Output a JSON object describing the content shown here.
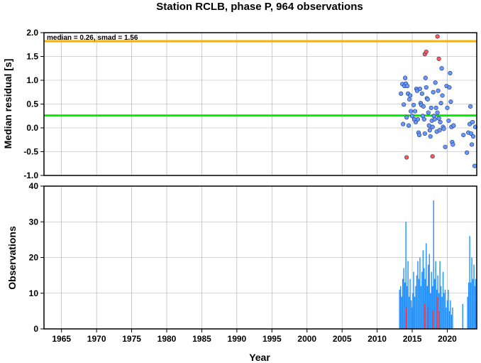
{
  "chart_data": [
    {
      "type": "scatter",
      "title": "Station RCLB, phase P, 964 observations",
      "ylabel": "Median residual [s]",
      "annotation": "median = 0.26, smad = 1.56",
      "xlim": [
        1962.5,
        2024.2
      ],
      "ylim": [
        -1.0,
        2.0
      ],
      "yticks": [
        "2.0",
        "1.5",
        "1.0",
        "0.5",
        "0.0",
        "-0.5",
        "-1.0"
      ],
      "grid": true,
      "reference_lines": [
        {
          "value": 0.26,
          "color": "#00ee00"
        },
        {
          "value": 1.82,
          "color": "#ffb000"
        }
      ],
      "colors": {
        "normal": "#6699ff",
        "outlier": "#ff5555"
      },
      "series": [
        {
          "points": [
            [
              2013.4,
              0.72
            ],
            [
              2013.6,
              0.92
            ],
            [
              2013.7,
              0.08
            ],
            [
              2013.8,
              0.49
            ],
            [
              2013.9,
              0.88
            ],
            [
              2014.0,
              1.05
            ],
            [
              2014.1,
              0.93
            ],
            [
              2014.2,
              0.22
            ],
            [
              2014.3,
              0.88
            ],
            [
              2014.4,
              0.72
            ],
            [
              2014.5,
              0.05
            ],
            [
              2014.6,
              0.6
            ],
            [
              2014.7,
              0.68
            ],
            [
              2014.8,
              0.35
            ],
            [
              2015.0,
              0.25
            ],
            [
              2015.2,
              0.48
            ],
            [
              2015.3,
              0.18
            ],
            [
              2015.4,
              0.35
            ],
            [
              2015.5,
              0.12
            ],
            [
              2015.6,
              0.82
            ],
            [
              2015.7,
              0.78
            ],
            [
              2015.8,
              0.18
            ],
            [
              2015.9,
              -0.1
            ],
            [
              2016.0,
              -0.15
            ],
            [
              2016.1,
              0.82
            ],
            [
              2016.2,
              0.52
            ],
            [
              2016.3,
              0.48
            ],
            [
              2016.4,
              0.72
            ],
            [
              2016.5,
              0.25
            ],
            [
              2016.6,
              0.45
            ],
            [
              2016.7,
              0.18
            ],
            [
              2016.8,
              -0.12
            ],
            [
              2016.9,
              1.05
            ],
            [
              2017.0,
              0.85
            ],
            [
              2017.1,
              0.62
            ],
            [
              2017.2,
              0.6
            ],
            [
              2017.3,
              0.32
            ],
            [
              2017.4,
              0.05
            ],
            [
              2017.5,
              -0.05
            ],
            [
              2017.6,
              -0.18
            ],
            [
              2017.7,
              0.42
            ],
            [
              2017.8,
              0.15
            ],
            [
              2017.9,
              0.02
            ],
            [
              2018.0,
              0.75
            ],
            [
              2018.1,
              0.25
            ],
            [
              2018.2,
              0.18
            ],
            [
              2018.3,
              0.95
            ],
            [
              2018.4,
              0.42
            ],
            [
              2018.5,
              -0.08
            ],
            [
              2018.6,
              0.32
            ],
            [
              2018.7,
              0.78
            ],
            [
              2018.8,
              0.2
            ],
            [
              2018.9,
              -0.05
            ],
            [
              2019.0,
              0.12
            ],
            [
              2019.1,
              0.52
            ],
            [
              2019.2,
              1.25
            ],
            [
              2019.3,
              0.68
            ],
            [
              2019.4,
              0.02
            ],
            [
              2019.5,
              -0.02
            ],
            [
              2019.7,
              -0.4
            ],
            [
              2019.9,
              0.88
            ],
            [
              2020.0,
              0.42
            ],
            [
              2020.2,
              0.15
            ],
            [
              2020.3,
              0.85
            ],
            [
              2020.4,
              1.15
            ],
            [
              2020.5,
              0.55
            ],
            [
              2020.6,
              0.02
            ],
            [
              2020.7,
              -0.3
            ],
            [
              2020.8,
              -0.35
            ],
            [
              2020.9,
              0.05
            ],
            [
              2022.3,
              -0.15
            ],
            [
              2022.8,
              -0.52
            ],
            [
              2023.0,
              -0.1
            ],
            [
              2023.2,
              0.08
            ],
            [
              2023.3,
              0.45
            ],
            [
              2023.4,
              -0.12
            ],
            [
              2023.5,
              -0.35
            ],
            [
              2023.6,
              0.12
            ],
            [
              2023.7,
              -0.18
            ],
            [
              2023.9,
              -0.8
            ],
            [
              2024.0,
              0.02
            ]
          ]
        },
        {
          "outlier": true,
          "points": [
            [
              2014.2,
              -0.62
            ],
            [
              2016.8,
              1.55
            ],
            [
              2017.0,
              1.6
            ],
            [
              2017.9,
              -0.6
            ],
            [
              2018.6,
              1.92
            ],
            [
              2018.8,
              1.45
            ]
          ]
        }
      ]
    },
    {
      "type": "bar",
      "xlabel": "Year",
      "ylabel": "Observations",
      "xlim": [
        1962.5,
        2024.2
      ],
      "ylim": [
        0,
        40
      ],
      "xticks": [
        "1965",
        "1970",
        "1975",
        "1980",
        "1985",
        "1990",
        "1995",
        "2000",
        "2005",
        "2010",
        "2015",
        "2020"
      ],
      "yticks": [
        "40",
        "30",
        "20",
        "10",
        "0"
      ],
      "grid": true,
      "colors": {
        "normal": "#1e8fff",
        "outlier": "#ff3333"
      },
      "bar_series": [
        {
          "points": [
            [
              2013.2,
              11
            ],
            [
              2013.35,
              12
            ],
            [
              2013.5,
              9
            ],
            [
              2013.65,
              14
            ],
            [
              2013.8,
              17
            ],
            [
              2013.95,
              13
            ],
            [
              2014.1,
              30
            ],
            [
              2014.25,
              12
            ],
            [
              2014.4,
              19
            ],
            [
              2014.55,
              9
            ],
            [
              2014.7,
              14
            ],
            [
              2014.85,
              8
            ],
            [
              2015.0,
              6
            ],
            [
              2015.1,
              10
            ],
            [
              2015.2,
              16
            ],
            [
              2015.35,
              9
            ],
            [
              2015.5,
              12
            ],
            [
              2015.65,
              15
            ],
            [
              2015.8,
              19
            ],
            [
              2015.95,
              14
            ],
            [
              2016.1,
              20
            ],
            [
              2016.25,
              12
            ],
            [
              2016.4,
              16
            ],
            [
              2016.55,
              22
            ],
            [
              2016.7,
              17
            ],
            [
              2016.85,
              14
            ],
            [
              2017.0,
              24
            ],
            [
              2017.15,
              12
            ],
            [
              2017.3,
              18
            ],
            [
              2017.45,
              21
            ],
            [
              2017.6,
              10
            ],
            [
              2017.75,
              16
            ],
            [
              2017.9,
              12
            ],
            [
              2018.05,
              36
            ],
            [
              2018.2,
              14
            ],
            [
              2018.35,
              19
            ],
            [
              2018.5,
              11
            ],
            [
              2018.65,
              15
            ],
            [
              2018.8,
              10
            ],
            [
              2018.95,
              19
            ],
            [
              2019.1,
              12
            ],
            [
              2019.25,
              9
            ],
            [
              2019.4,
              16
            ],
            [
              2019.55,
              10
            ],
            [
              2019.7,
              11
            ],
            [
              2019.85,
              6
            ],
            [
              2020.0,
              8
            ],
            [
              2020.15,
              11
            ],
            [
              2020.3,
              5
            ],
            [
              2020.45,
              8
            ],
            [
              2020.6,
              4
            ],
            [
              2020.75,
              6
            ],
            [
              2022.2,
              7
            ],
            [
              2022.9,
              9
            ],
            [
              2023.05,
              13
            ],
            [
              2023.2,
              26
            ],
            [
              2023.35,
              13
            ],
            [
              2023.5,
              20
            ],
            [
              2023.65,
              14
            ],
            [
              2023.8,
              18
            ],
            [
              2023.95,
              12
            ],
            [
              2024.05,
              14
            ]
          ]
        },
        {
          "outlier": true,
          "points": [
            [
              2014.15,
              6
            ],
            [
              2016.75,
              7
            ],
            [
              2017.25,
              6
            ],
            [
              2017.95,
              5
            ],
            [
              2018.55,
              9
            ],
            [
              2018.85,
              5
            ]
          ]
        }
      ]
    }
  ]
}
